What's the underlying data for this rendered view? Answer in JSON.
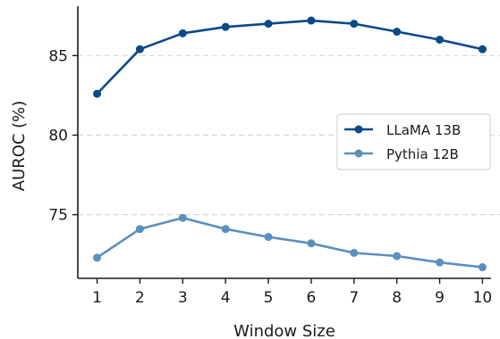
{
  "chart_data": {
    "type": "line",
    "title": "",
    "xlabel": "Window Size",
    "ylabel": "AUROC (%)",
    "x": [
      1,
      2,
      3,
      4,
      5,
      6,
      7,
      8,
      9,
      10
    ],
    "x_ticks": [
      "1",
      "2",
      "3",
      "4",
      "5",
      "6",
      "7",
      "8",
      "9",
      "10"
    ],
    "y_ticks": [
      75,
      80,
      85
    ],
    "ylim": [
      71.0,
      88.1
    ],
    "xlim": [
      0.55,
      10.2
    ],
    "grid": "horizontal dashed",
    "legend_position": "center-right",
    "series": [
      {
        "name": "LLaMA 13B",
        "color": "#0b4a86",
        "values": [
          82.6,
          85.4,
          86.4,
          86.8,
          87.0,
          87.2,
          87.0,
          86.5,
          86.0,
          85.4
        ]
      },
      {
        "name": "Pythia 12B",
        "color": "#5b8fbf",
        "values": [
          72.3,
          74.1,
          74.8,
          74.1,
          73.6,
          73.2,
          72.6,
          72.4,
          72.0,
          71.7
        ]
      }
    ]
  }
}
